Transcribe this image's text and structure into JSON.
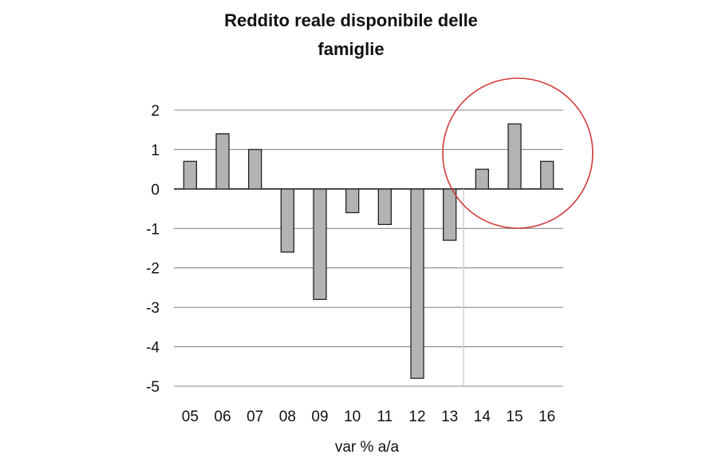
{
  "chart_data": {
    "type": "bar",
    "title_lines": [
      "Reddito reale disponibile delle",
      "famiglie"
    ],
    "xlabel": "var % a/a",
    "ylabel": "",
    "categories": [
      "05",
      "06",
      "07",
      "08",
      "09",
      "10",
      "11",
      "12",
      "13",
      "14",
      "15",
      "16"
    ],
    "values": [
      0.7,
      1.4,
      1.0,
      -1.6,
      -2.8,
      -0.6,
      -0.9,
      -4.8,
      -1.3,
      0.5,
      1.65,
      0.7
    ],
    "ylim": [
      -5,
      2
    ],
    "yticks": [
      "2",
      "1",
      "0",
      "-1",
      "-2",
      "-3",
      "-4",
      "-5"
    ],
    "grid": true,
    "bar_color": "#b3b3b3",
    "highlight_circle_color": "#d23b3b",
    "highlighted_categories": [
      "14",
      "15",
      "16"
    ]
  }
}
